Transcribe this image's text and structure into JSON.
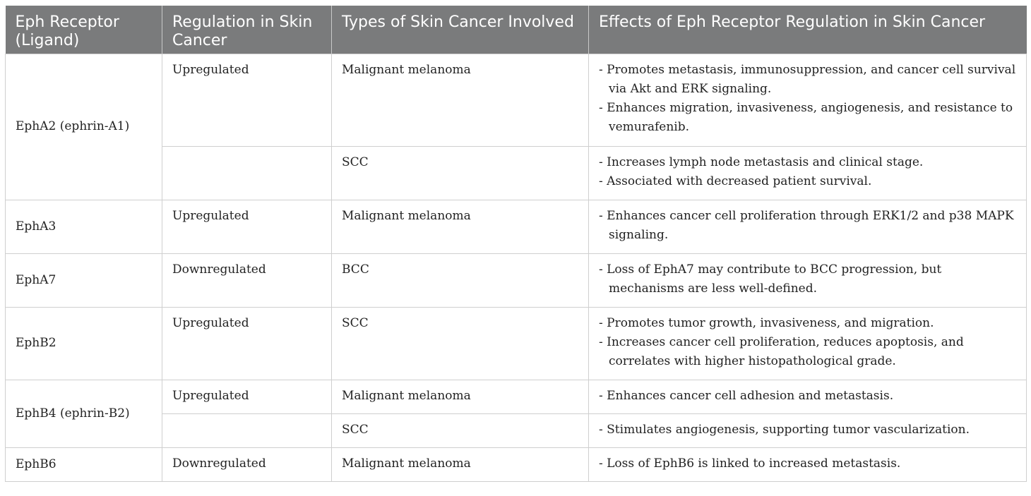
{
  "headers": [
    "Eph Receptor (Ligand)",
    "Regulation in Skin Cancer",
    "Types of Skin Cancer Involved",
    "Effects of Eph Receptor Regulation in Skin Cancer"
  ],
  "rows": [
    {
      "receptor": "EphA2 (ephrin-A1)",
      "entries": [
        {
          "regulation": "Upregulated",
          "type": "Malignant melanoma",
          "effects": [
            "- Promotes metastasis, immunosuppression, and cancer cell survival via Akt and ERK signaling.",
            "- Enhances migration, invasiveness, angiogenesis, and resistance to vemurafenib."
          ]
        },
        {
          "regulation": "",
          "type": "SCC",
          "effects": [
            "- Increases lymph node metastasis and clinical stage.",
            "- Associated with decreased patient survival."
          ]
        }
      ]
    },
    {
      "receptor": "EphA3",
      "entries": [
        {
          "regulation": "Upregulated",
          "type": "Malignant melanoma",
          "effects": [
            "- Enhances cancer cell proliferation through ERK1/2 and p38 MAPK signaling."
          ]
        }
      ]
    },
    {
      "receptor": "EphA7",
      "entries": [
        {
          "regulation": "Downregulated",
          "type": "BCC",
          "effects": [
            "- Loss of EphA7 may contribute to BCC progression, but mechanisms are less well-defined."
          ]
        }
      ]
    },
    {
      "receptor": "EphB2",
      "entries": [
        {
          "regulation": "Upregulated",
          "type": "SCC",
          "effects": [
            "- Promotes tumor growth, invasiveness, and migration.",
            "- Increases cancer cell proliferation, reduces apoptosis, and correlates with higher histopathological grade."
          ]
        }
      ]
    },
    {
      "receptor": "EphB4 (ephrin-B2)",
      "entries": [
        {
          "regulation": "Upregulated",
          "type": "Malignant melanoma",
          "effects": [
            "- Enhances cancer cell adhesion and metastasis."
          ]
        },
        {
          "regulation": "",
          "type": "SCC",
          "effects": [
            "- Stimulates angiogenesis, supporting tumor vascularization."
          ]
        }
      ]
    },
    {
      "receptor": "EphB6",
      "entries": [
        {
          "regulation": "Downregulated",
          "type": "Malignant melanoma",
          "effects": [
            "- Loss of EphB6 is linked to increased metastasis."
          ]
        }
      ]
    }
  ]
}
